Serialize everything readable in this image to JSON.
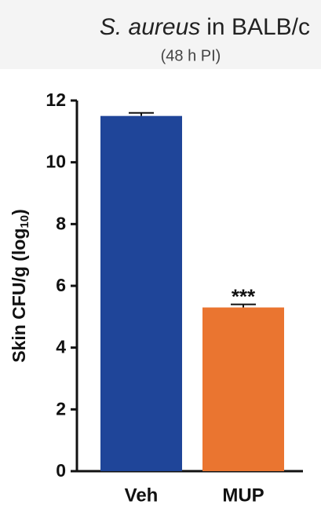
{
  "chart_data": {
    "type": "bar",
    "title": {
      "italic": "S. aureus",
      "text": "in BALB/c"
    },
    "subtitle": "(48 h PI)",
    "ylabel": [
      "Skin CFU/g (log",
      "10",
      ")"
    ],
    "categories": [
      "Veh",
      "MUP"
    ],
    "values": [
      11.5,
      5.3
    ],
    "errors": [
      0.1,
      0.1
    ],
    "colors": [
      "#1f4599",
      "#ea7530"
    ],
    "annotations": [
      null,
      "***"
    ],
    "ylim": [
      0,
      12
    ],
    "yticks": [
      0,
      2,
      4,
      6,
      8,
      10,
      12
    ],
    "grid": false
  }
}
